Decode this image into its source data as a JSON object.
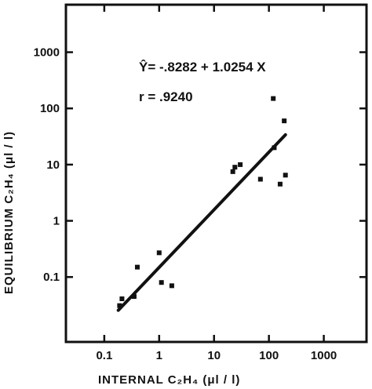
{
  "chart_data": {
    "type": "scatter",
    "x_scale": "log",
    "y_scale": "log",
    "xlim": [
      0.02,
      6000
    ],
    "ylim": [
      0.007,
      7000
    ],
    "x_ticks": [
      0.1,
      1,
      10,
      100,
      1000
    ],
    "x_tick_labels": [
      "0.1",
      "1",
      "10",
      "100",
      "1000"
    ],
    "y_ticks": [
      0.1,
      1,
      10,
      100,
      1000
    ],
    "y_tick_labels": [
      "0.1",
      "1",
      "10",
      "100",
      "1000"
    ],
    "xlabel": "INTERNAL  C₂H₄  (μl / l)",
    "ylabel": "EQUILIBRIUM  C₂H₄  (μl / l)",
    "equation": "Ŷ= -.8282 + 1.0254 X",
    "r_text": "r =  .9240",
    "points": [
      {
        "x": 0.19,
        "y": 0.031
      },
      {
        "x": 0.21,
        "y": 0.041
      },
      {
        "x": 0.35,
        "y": 0.045
      },
      {
        "x": 0.4,
        "y": 0.15
      },
      {
        "x": 1.0,
        "y": 0.27
      },
      {
        "x": 1.1,
        "y": 0.08
      },
      {
        "x": 1.7,
        "y": 0.07
      },
      {
        "x": 22,
        "y": 7.5
      },
      {
        "x": 24,
        "y": 9
      },
      {
        "x": 30,
        "y": 10
      },
      {
        "x": 70,
        "y": 5.5
      },
      {
        "x": 120,
        "y": 150
      },
      {
        "x": 125,
        "y": 20
      },
      {
        "x": 160,
        "y": 4.5
      },
      {
        "x": 190,
        "y": 60
      },
      {
        "x": 200,
        "y": 6.5
      }
    ],
    "fit_line": {
      "x_start": 0.18,
      "x_end": 200
    },
    "grid": false,
    "legend": "none"
  }
}
